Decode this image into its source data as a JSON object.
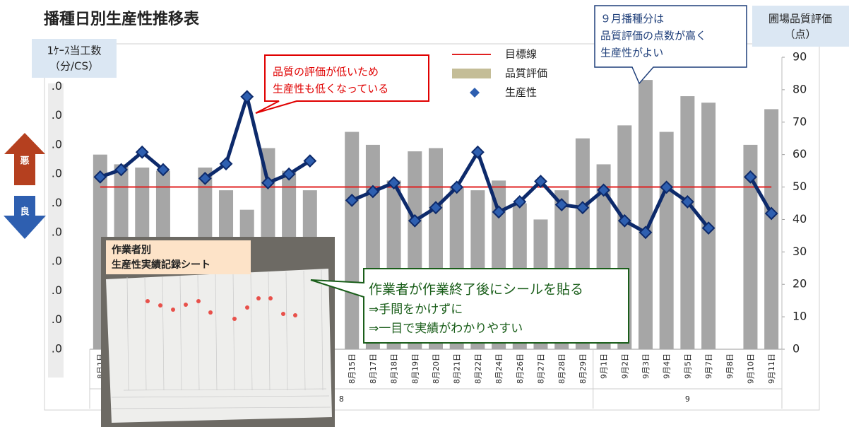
{
  "chart_data": {
    "type": "bar",
    "title": "播種日別生産性推移表",
    "y_label": [
      "1ｹｰｽ当工数",
      "（分/CS）"
    ],
    "y2_label": [
      "圃場品質評価",
      "（点）"
    ],
    "categories": [
      "8月1日",
      null,
      null,
      null,
      null,
      null,
      null,
      null,
      null,
      null,
      null,
      null,
      "8月15日",
      "8月17日",
      "8月18日",
      "8月19日",
      "8月20日",
      "8月21日",
      "8月22日",
      "8月24日",
      "8月26日",
      "8月27日",
      "8月28日",
      "8月29日",
      "9月1日",
      "9月2日",
      "9月3日",
      "9月4日",
      "9月5日",
      "9月7日",
      "9月8日",
      "9月10日",
      "9月11日"
    ],
    "groups": [
      {
        "label": "8",
        "from": 0,
        "to": 23
      },
      {
        "label": "9",
        "from": 24,
        "to": 32
      }
    ],
    "series": [
      {
        "name": "品質評価",
        "type": "bar",
        "axis": "y2",
        "color": "#a6a6a6",
        "values": [
          60,
          57,
          56,
          55,
          null,
          56,
          49,
          43,
          62,
          55,
          49,
          null,
          67,
          63,
          52,
          61,
          62,
          50,
          49,
          52,
          45,
          40,
          49,
          65,
          57,
          69,
          83,
          67,
          78,
          76,
          null,
          63,
          74
        ]
      },
      {
        "name": "生産性",
        "type": "line",
        "color": "#0d2a6b",
        "marker_color": "#2e5fb0",
        "values": [
          5.9,
          6.15,
          6.75,
          6.15,
          null,
          5.85,
          6.35,
          8.65,
          5.7,
          6.0,
          6.45,
          null,
          5.1,
          5.4,
          5.7,
          4.4,
          4.85,
          5.55,
          6.75,
          4.7,
          5.05,
          5.75,
          4.95,
          4.85,
          5.45,
          4.4,
          4.0,
          5.55,
          5.05,
          4.15,
          null,
          5.9,
          4.65
        ]
      }
    ],
    "reference_lines": [
      {
        "name": "目標線",
        "value": 50,
        "axis": "y2",
        "color": "#e02020"
      }
    ],
    "legend_order": [
      "reference_lines.0",
      "series.0",
      "series.1"
    ],
    "ylim": [
      0,
      10
    ],
    "yticks": [
      {
        "value": 0,
        "label": ".0"
      },
      {
        "value": 1,
        "label": ".0"
      },
      {
        "value": 2,
        "label": ".0"
      },
      {
        "value": 3,
        "label": ".0"
      },
      {
        "value": 4,
        "label": ".0"
      },
      {
        "value": 5,
        "label": ".0"
      },
      {
        "value": 6,
        "label": ".0"
      },
      {
        "value": 7,
        "label": ".0"
      },
      {
        "value": 8,
        "label": ".0"
      },
      {
        "value": 9,
        "label": ".0"
      }
    ],
    "y2lim": [
      0,
      90
    ],
    "y2ticks": [
      0,
      10,
      20,
      30,
      40,
      50,
      60,
      70,
      80,
      90
    ],
    "annotations": [
      {
        "lines": [
          "品質の評価が低いため",
          "生産性も低くなっている"
        ],
        "color": "#e00000"
      },
      {
        "lines": [
          "９月播種分は",
          "品質評価の点数が高く",
          "生産性がよい"
        ],
        "color": "#1f3f7a"
      },
      {
        "lines": [
          "作業者が作業終了後にシールを貼る",
          "⇒手間をかけずに",
          "⇒一目で実績がわかりやすい"
        ],
        "color": "#1a5e1a"
      }
    ],
    "arrows": [
      "悪",
      "良"
    ],
    "photo_label": [
      "作業者別",
      "生産性実績記録シート"
    ]
  }
}
